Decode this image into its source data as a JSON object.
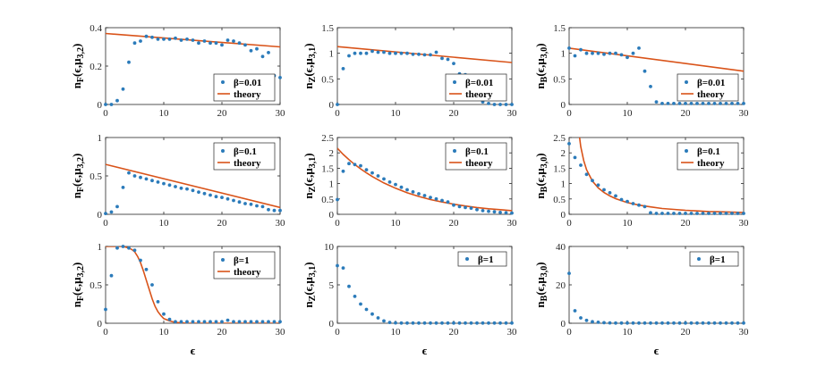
{
  "figure": {
    "x_label": "ϵ",
    "colors": {
      "points": "#2b7bba",
      "theory": "#d95319",
      "axis": "#262626"
    }
  },
  "chart_data": [
    {
      "type": "scatter",
      "ylabel": "nF(ϵ,μ3,2)",
      "ylabel_main": "n",
      "ylabel_sub": "F",
      "ylabel_paren_a": "(ϵ,μ",
      "ylabel_paren_sub": "3,2",
      "ylabel_close": ")",
      "beta": "β=0.01",
      "theory_label": "theory",
      "xlim": [
        0,
        30
      ],
      "ylim": [
        0,
        0.4
      ],
      "yticks": [
        "0",
        "0.2",
        "0.4"
      ],
      "xticks": [
        "0",
        "10",
        "20",
        "30"
      ],
      "x": [
        0,
        1,
        2,
        3,
        4,
        5,
        6,
        7,
        8,
        9,
        10,
        11,
        12,
        13,
        14,
        15,
        16,
        17,
        18,
        19,
        20,
        21,
        22,
        23,
        24,
        25,
        26,
        27,
        28,
        29,
        30
      ],
      "values": [
        0.0,
        0.0,
        0.02,
        0.08,
        0.22,
        0.32,
        0.33,
        0.355,
        0.35,
        0.34,
        0.34,
        0.34,
        0.345,
        0.335,
        0.34,
        0.335,
        0.32,
        0.33,
        0.32,
        0.32,
        0.31,
        0.335,
        0.33,
        0.32,
        0.31,
        0.28,
        0.29,
        0.25,
        0.27,
        0.15,
        0.14
      ],
      "theory": {
        "x": [
          0,
          30
        ],
        "y": [
          0.37,
          0.3
        ]
      }
    },
    {
      "type": "scatter",
      "ylabel": "nZ(ϵ,μ3,1)",
      "ylabel_main": "n",
      "ylabel_sub": "Z",
      "ylabel_paren_a": "(ϵ,μ",
      "ylabel_paren_sub": "3,1",
      "ylabel_close": ")",
      "beta": "β=0.01",
      "theory_label": "theory",
      "xlim": [
        0,
        30
      ],
      "ylim": [
        0,
        1.5
      ],
      "yticks": [
        "0",
        "0.5",
        "1",
        "1.5"
      ],
      "xticks": [
        "0",
        "10",
        "20",
        "30"
      ],
      "x": [
        0,
        1,
        2,
        3,
        4,
        5,
        6,
        7,
        8,
        9,
        10,
        11,
        12,
        13,
        14,
        15,
        16,
        17,
        18,
        19,
        20,
        21,
        22,
        23,
        24,
        25,
        26,
        27,
        28,
        29,
        30
      ],
      "values": [
        0.0,
        0.7,
        0.95,
        1.0,
        1.0,
        1.0,
        1.04,
        1.02,
        1.02,
        1.0,
        1.0,
        1.0,
        1.0,
        0.98,
        0.98,
        0.97,
        0.97,
        1.02,
        0.9,
        0.88,
        0.8,
        0.6,
        0.58,
        0.32,
        0.12,
        0.05,
        0.02,
        0.0,
        0.0,
        0.0,
        0.0
      ],
      "theory": {
        "x": [
          0,
          30
        ],
        "y": [
          1.13,
          0.82
        ]
      }
    },
    {
      "type": "scatter",
      "ylabel": "nB(ϵ,μ3,0)",
      "ylabel_main": "n",
      "ylabel_sub": "B",
      "ylabel_paren_a": "(ϵ,μ",
      "ylabel_paren_sub": "3,0",
      "ylabel_close": ")",
      "beta": "β=0.01",
      "theory_label": "theory",
      "xlim": [
        0,
        30
      ],
      "ylim": [
        0,
        1.5
      ],
      "yticks": [
        "0",
        "0.5",
        "1",
        "1.5"
      ],
      "xticks": [
        "0",
        "10",
        "20",
        "30"
      ],
      "x": [
        0,
        1,
        2,
        3,
        4,
        5,
        6,
        7,
        8,
        9,
        10,
        11,
        12,
        13,
        14,
        15,
        16,
        17,
        18,
        19,
        20,
        21,
        22,
        23,
        24,
        25,
        26,
        27,
        28,
        29,
        30
      ],
      "values": [
        1.1,
        0.95,
        1.07,
        1.0,
        1.0,
        1.0,
        0.98,
        1.0,
        1.0,
        0.97,
        0.92,
        1.0,
        1.1,
        0.65,
        0.35,
        0.05,
        0.02,
        0.02,
        0.02,
        0.02,
        0.02,
        0.02,
        0.02,
        0.02,
        0.02,
        0.02,
        0.02,
        0.02,
        0.02,
        0.02,
        0.02
      ],
      "theory": {
        "x": [
          0,
          30
        ],
        "y": [
          1.1,
          0.65
        ]
      }
    },
    {
      "type": "scatter",
      "ylabel": "nF(ϵ,μ3,2)",
      "ylabel_main": "n",
      "ylabel_sub": "F",
      "ylabel_paren_a": "(ϵ,μ",
      "ylabel_paren_sub": "3,2",
      "ylabel_close": ")",
      "beta": "β=0.1",
      "theory_label": "theory",
      "xlim": [
        0,
        30
      ],
      "ylim": [
        0,
        1
      ],
      "yticks": [
        "0",
        "0.5",
        "1"
      ],
      "xticks": [
        "0",
        "10",
        "20",
        "30"
      ],
      "x": [
        0,
        1,
        2,
        3,
        4,
        5,
        6,
        7,
        8,
        9,
        10,
        11,
        12,
        13,
        14,
        15,
        16,
        17,
        18,
        19,
        20,
        21,
        22,
        23,
        24,
        25,
        26,
        27,
        28,
        29,
        30
      ],
      "values": [
        0.01,
        0.03,
        0.1,
        0.35,
        0.54,
        0.5,
        0.48,
        0.46,
        0.44,
        0.42,
        0.4,
        0.38,
        0.36,
        0.34,
        0.33,
        0.31,
        0.29,
        0.27,
        0.25,
        0.23,
        0.22,
        0.2,
        0.18,
        0.16,
        0.14,
        0.13,
        0.11,
        0.1,
        0.06,
        0.05,
        0.05
      ],
      "theory": {
        "x": [
          0,
          30
        ],
        "y": [
          0.65,
          0.09
        ]
      }
    },
    {
      "type": "scatter",
      "ylabel": "nZ(ϵ,μ3,1)",
      "ylabel_main": "n",
      "ylabel_sub": "Z",
      "ylabel_paren_a": "(ϵ,μ",
      "ylabel_paren_sub": "3,1",
      "ylabel_close": ")",
      "beta": "β=0.1",
      "theory_label": "theory",
      "xlim": [
        0,
        30
      ],
      "ylim": [
        0,
        2.5
      ],
      "yticks": [
        "0",
        "0.5",
        "1",
        "1.5",
        "2",
        "2.5"
      ],
      "xticks": [
        "0",
        "10",
        "20",
        "30"
      ],
      "x": [
        0,
        1,
        2,
        3,
        4,
        5,
        6,
        7,
        8,
        9,
        10,
        11,
        12,
        13,
        14,
        15,
        16,
        17,
        18,
        19,
        20,
        21,
        22,
        23,
        24,
        25,
        26,
        27,
        28,
        29,
        30
      ],
      "values": [
        0.48,
        1.4,
        1.65,
        1.62,
        1.58,
        1.45,
        1.35,
        1.25,
        1.15,
        1.05,
        0.97,
        0.88,
        0.8,
        0.73,
        0.67,
        0.61,
        0.55,
        0.5,
        0.45,
        0.4,
        0.3,
        0.25,
        0.22,
        0.2,
        0.15,
        0.12,
        0.1,
        0.08,
        0.06,
        0.05,
        0.04
      ],
      "theory": {
        "x": [
          0,
          1,
          2,
          3,
          4,
          5,
          6,
          8,
          10,
          12,
          14,
          16,
          18,
          20,
          22,
          24,
          26,
          28,
          30
        ],
        "y": [
          2.15,
          1.95,
          1.78,
          1.62,
          1.48,
          1.35,
          1.23,
          1.02,
          0.85,
          0.7,
          0.58,
          0.48,
          0.4,
          0.33,
          0.27,
          0.22,
          0.18,
          0.15,
          0.12
        ]
      }
    },
    {
      "type": "scatter",
      "ylabel": "nB(ϵ,μ3,0)",
      "ylabel_main": "n",
      "ylabel_sub": "B",
      "ylabel_paren_a": "(ϵ,μ",
      "ylabel_paren_sub": "3,0",
      "ylabel_close": ")",
      "beta": "β=0.1",
      "theory_label": "theory",
      "xlim": [
        0,
        30
      ],
      "ylim": [
        0,
        2.5
      ],
      "yticks": [
        "0",
        "0.5",
        "1",
        "1.5",
        "2",
        "2.5"
      ],
      "xticks": [
        "0",
        "10",
        "20",
        "30"
      ],
      "x": [
        0,
        1,
        2,
        3,
        4,
        5,
        6,
        7,
        8,
        9,
        10,
        11,
        12,
        13,
        14,
        15,
        16,
        17,
        18,
        19,
        20,
        21,
        22,
        23,
        24,
        25,
        26,
        27,
        28,
        29,
        30
      ],
      "values": [
        2.3,
        1.85,
        1.6,
        1.3,
        1.1,
        0.95,
        0.8,
        0.7,
        0.6,
        0.48,
        0.42,
        0.35,
        0.3,
        0.25,
        0.05,
        0.03,
        0.03,
        0.03,
        0.03,
        0.03,
        0.03,
        0.03,
        0.03,
        0.03,
        0.03,
        0.03,
        0.03,
        0.03,
        0.03,
        0.03,
        0.03
      ],
      "theory": {
        "x": [
          1.8,
          2,
          2.5,
          3,
          4,
          5,
          6,
          7,
          8,
          10,
          12,
          14,
          16,
          18,
          20,
          22,
          24,
          26,
          28,
          30
        ],
        "y": [
          2.5,
          2.2,
          1.75,
          1.45,
          1.08,
          0.86,
          0.71,
          0.6,
          0.51,
          0.38,
          0.3,
          0.24,
          0.19,
          0.16,
          0.13,
          0.11,
          0.09,
          0.08,
          0.07,
          0.06
        ]
      }
    },
    {
      "type": "scatter",
      "ylabel": "nF(ϵ,μ3,2)",
      "ylabel_main": "n",
      "ylabel_sub": "F",
      "ylabel_paren_a": "(ϵ,μ",
      "ylabel_paren_sub": "3,2",
      "ylabel_close": ")",
      "beta": "β=1",
      "theory_label": "theory",
      "xlim": [
        0,
        30
      ],
      "ylim": [
        0,
        1
      ],
      "yticks": [
        "0",
        "0.5",
        "1"
      ],
      "xticks": [
        "0",
        "10",
        "20",
        "30"
      ],
      "x": [
        0,
        1,
        2,
        3,
        4,
        5,
        6,
        7,
        8,
        9,
        10,
        11,
        12,
        13,
        14,
        15,
        16,
        17,
        18,
        19,
        20,
        21,
        22,
        23,
        24,
        25,
        26,
        27,
        28,
        29,
        30
      ],
      "values": [
        0.18,
        0.62,
        0.98,
        1.0,
        0.98,
        0.95,
        0.82,
        0.7,
        0.5,
        0.28,
        0.12,
        0.05,
        0.02,
        0.02,
        0.02,
        0.02,
        0.02,
        0.02,
        0.02,
        0.02,
        0.02,
        0.04,
        0.02,
        0.02,
        0.02,
        0.02,
        0.02,
        0.02,
        0.02,
        0.02,
        0.02
      ],
      "theory": {
        "x": [
          0,
          1,
          2,
          3,
          4,
          4.5,
          5,
          5.5,
          6,
          6.5,
          7,
          7.5,
          8,
          8.5,
          9,
          9.5,
          10,
          11,
          12,
          14,
          16,
          20,
          25,
          30
        ],
        "y": [
          1.0,
          1.0,
          1.0,
          1.0,
          0.98,
          0.96,
          0.93,
          0.87,
          0.79,
          0.68,
          0.56,
          0.44,
          0.32,
          0.22,
          0.15,
          0.1,
          0.06,
          0.03,
          0.01,
          0.0,
          0.0,
          0.0,
          0.0,
          0.0
        ]
      }
    },
    {
      "type": "scatter",
      "ylabel": "nZ(ϵ,μ3,1)",
      "ylabel_main": "n",
      "ylabel_sub": "Z",
      "ylabel_paren_a": "(ϵ,μ",
      "ylabel_paren_sub": "3,1",
      "ylabel_close": ")",
      "beta": "β=1",
      "xlim": [
        0,
        30
      ],
      "ylim": [
        0,
        10
      ],
      "yticks": [
        "0",
        "5",
        "10"
      ],
      "xticks": [
        "0",
        "10",
        "20",
        "30"
      ],
      "x": [
        0,
        1,
        2,
        3,
        4,
        5,
        6,
        7,
        8,
        9,
        10,
        11,
        12,
        13,
        14,
        15,
        16,
        17,
        18,
        19,
        20,
        21,
        22,
        23,
        24,
        25,
        26,
        27,
        28,
        29,
        30
      ],
      "values": [
        7.5,
        7.2,
        4.8,
        3.5,
        2.5,
        1.8,
        1.2,
        0.7,
        0.3,
        0.1,
        0.05,
        0.02,
        0.02,
        0.02,
        0.02,
        0.02,
        0.02,
        0.02,
        0.02,
        0.02,
        0.02,
        0.02,
        0.02,
        0.02,
        0.02,
        0.02,
        0.02,
        0.02,
        0.02,
        0.02,
        0.02
      ]
    },
    {
      "type": "scatter",
      "ylabel": "nB(ϵ,μ3,0)",
      "ylabel_main": "n",
      "ylabel_sub": "B",
      "ylabel_paren_a": "(ϵ,μ",
      "ylabel_paren_sub": "3,0",
      "ylabel_close": ")",
      "beta": "β=1",
      "xlim": [
        0,
        30
      ],
      "ylim": [
        0,
        40
      ],
      "yticks": [
        "0",
        "20",
        "40"
      ],
      "xticks": [
        "0",
        "10",
        "20",
        "30"
      ],
      "x": [
        0,
        1,
        2,
        3,
        4,
        5,
        6,
        7,
        8,
        9,
        10,
        11,
        12,
        13,
        14,
        15,
        16,
        17,
        18,
        19,
        20,
        21,
        22,
        23,
        24,
        25,
        26,
        27,
        28,
        29,
        30
      ],
      "values": [
        26,
        6.5,
        2.8,
        1.5,
        0.8,
        0.5,
        0.3,
        0.2,
        0.1,
        0.1,
        0.1,
        0.1,
        0.1,
        0.1,
        0.1,
        0.1,
        0.1,
        0.1,
        0.1,
        0.1,
        0.1,
        0.1,
        0.1,
        0.1,
        0.1,
        0.1,
        0.1,
        0.1,
        0.1,
        0.1,
        0.1
      ]
    }
  ]
}
